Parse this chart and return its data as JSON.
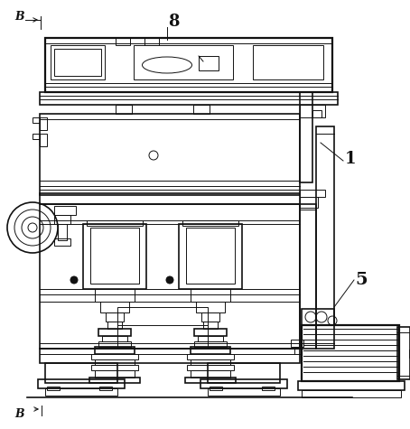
{
  "bg_color": "#ffffff",
  "line_color": "#111111",
  "lw": 0.7,
  "lw2": 1.2,
  "lw3": 1.6
}
